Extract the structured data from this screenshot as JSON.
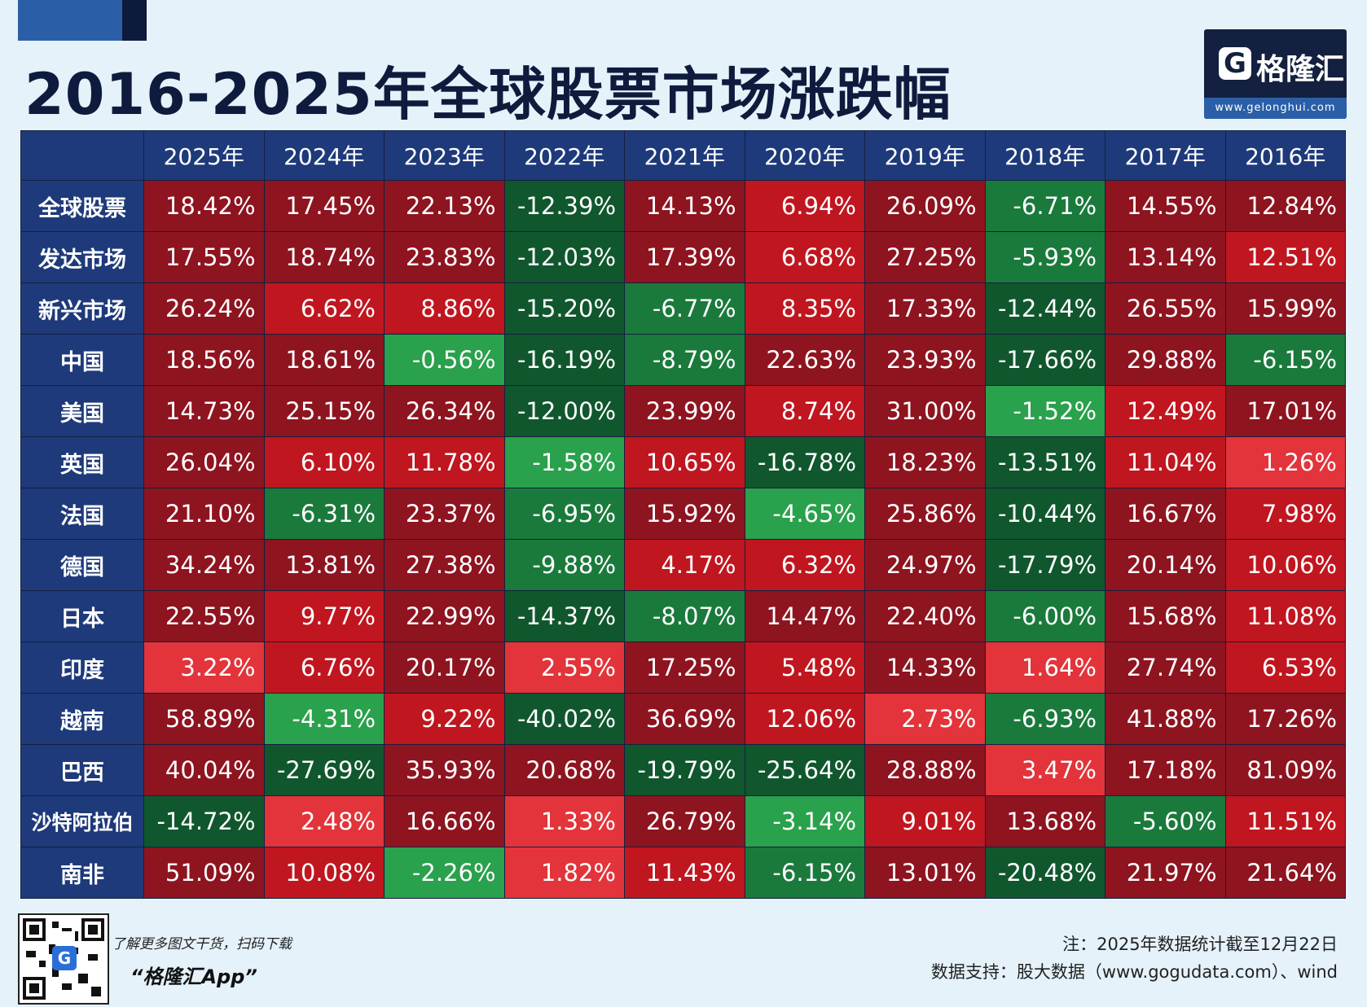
{
  "title": "2016-2025年全球股票市场涨跌幅",
  "logo": {
    "mark": "G",
    "name": "格隆汇",
    "url": "www.gelonghui.com"
  },
  "chart_data": {
    "type": "table",
    "columns": [
      "2025年",
      "2024年",
      "2023年",
      "2022年",
      "2021年",
      "2020年",
      "2019年",
      "2018年",
      "2017年",
      "2016年"
    ],
    "rows": [
      {
        "label": "全球股票",
        "values": [
          "18.42%",
          "17.45%",
          "22.13%",
          "-12.39%",
          "14.13%",
          "6.94%",
          "26.09%",
          "-6.71%",
          "14.55%",
          "12.84%"
        ]
      },
      {
        "label": "发达市场",
        "values": [
          "17.55%",
          "18.74%",
          "23.83%",
          "-12.03%",
          "17.39%",
          "6.68%",
          "27.25%",
          "-5.93%",
          "13.14%",
          "12.51%"
        ]
      },
      {
        "label": "新兴市场",
        "values": [
          "26.24%",
          "6.62%",
          "8.86%",
          "-15.20%",
          "-6.77%",
          "8.35%",
          "17.33%",
          "-12.44%",
          "26.55%",
          "15.99%"
        ]
      },
      {
        "label": "中国",
        "values": [
          "18.56%",
          "18.61%",
          "-0.56%",
          "-16.19%",
          "-8.79%",
          "22.63%",
          "23.93%",
          "-17.66%",
          "29.88%",
          "-6.15%"
        ]
      },
      {
        "label": "美国",
        "values": [
          "14.73%",
          "25.15%",
          "26.34%",
          "-12.00%",
          "23.99%",
          "8.74%",
          "31.00%",
          "-1.52%",
          "12.49%",
          "17.01%"
        ]
      },
      {
        "label": "英国",
        "values": [
          "26.04%",
          "6.10%",
          "11.78%",
          "-1.58%",
          "10.65%",
          "-16.78%",
          "18.23%",
          "-13.51%",
          "11.04%",
          "1.26%"
        ]
      },
      {
        "label": "法国",
        "values": [
          "21.10%",
          "-6.31%",
          "23.37%",
          "-6.95%",
          "15.92%",
          "-4.65%",
          "25.86%",
          "-10.44%",
          "16.67%",
          "7.98%"
        ]
      },
      {
        "label": "德国",
        "values": [
          "34.24%",
          "13.81%",
          "27.38%",
          "-9.88%",
          "4.17%",
          "6.32%",
          "24.97%",
          "-17.79%",
          "20.14%",
          "10.06%"
        ]
      },
      {
        "label": "日本",
        "values": [
          "22.55%",
          "9.77%",
          "22.99%",
          "-14.37%",
          "-8.07%",
          "14.47%",
          "22.40%",
          "-6.00%",
          "15.68%",
          "11.08%"
        ]
      },
      {
        "label": "印度",
        "values": [
          "3.22%",
          "6.76%",
          "20.17%",
          "2.55%",
          "17.25%",
          "5.48%",
          "14.33%",
          "1.64%",
          "27.74%",
          "6.53%"
        ]
      },
      {
        "label": "越南",
        "values": [
          "58.89%",
          "-4.31%",
          "9.22%",
          "-40.02%",
          "36.69%",
          "12.06%",
          "2.73%",
          "-6.93%",
          "41.88%",
          "17.26%"
        ]
      },
      {
        "label": "巴西",
        "values": [
          "40.04%",
          "-27.69%",
          "35.93%",
          "20.68%",
          "-19.79%",
          "-25.64%",
          "28.88%",
          "3.47%",
          "17.18%",
          "81.09%"
        ]
      },
      {
        "label": "沙特阿拉伯",
        "values": [
          "-14.72%",
          "2.48%",
          "16.66%",
          "1.33%",
          "26.79%",
          "-3.14%",
          "9.01%",
          "13.68%",
          "-5.60%",
          "11.51%"
        ]
      },
      {
        "label": "南非",
        "values": [
          "51.09%",
          "10.08%",
          "-2.26%",
          "1.82%",
          "11.43%",
          "-6.15%",
          "13.01%",
          "-20.48%",
          "21.97%",
          "21.64%"
        ]
      }
    ],
    "colors": {
      "pos_dark": "#8e1420",
      "pos_mid": "#c0161f",
      "pos_light": "#e2343a",
      "neg_dark": "#10572e",
      "neg_mid": "#1a7a3c",
      "neg_light": "#2aa14c"
    }
  },
  "footer": {
    "qr_badge": "G",
    "promo_line1": "了解更多图文干货，扫码下载",
    "promo_line2": "“格隆汇App”",
    "note": "注：2025年数据统计截至12月22日",
    "source": "数据支持：股大数据（www.gogudata.com）、wind"
  }
}
